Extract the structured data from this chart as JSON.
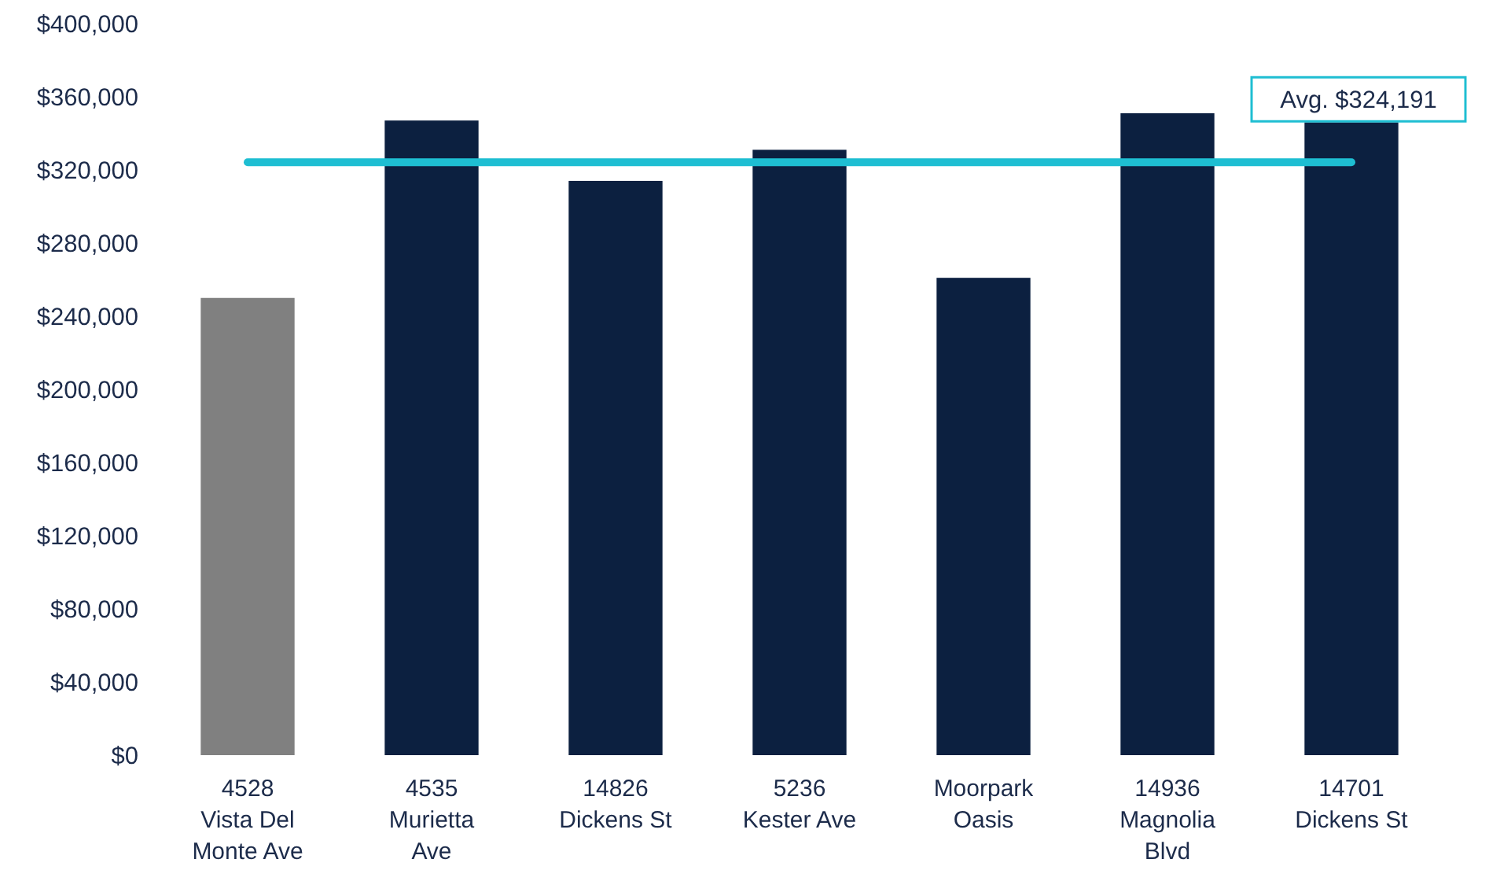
{
  "chart_data": {
    "type": "bar",
    "categories": [
      "4528 Vista Del Monte Ave",
      "4535 Murietta Ave",
      "14826 Dickens St",
      "5236 Kester Ave",
      "Moorpark Oasis",
      "14936 Magnolia Blvd",
      "14701 Dickens St"
    ],
    "values": [
      250000,
      347000,
      314000,
      331000,
      261000,
      351000,
      346000
    ],
    "colors": [
      "#808080",
      "#0c2040",
      "#0c2040",
      "#0c2040",
      "#0c2040",
      "#0c2040",
      "#0c2040"
    ],
    "ylim": [
      0,
      400000
    ],
    "yticks": [
      {
        "value": 0,
        "label": "$0"
      },
      {
        "value": 40000,
        "label": "$40,000"
      },
      {
        "value": 80000,
        "label": "$80,000"
      },
      {
        "value": 120000,
        "label": "$120,000"
      },
      {
        "value": 160000,
        "label": "$160,000"
      },
      {
        "value": 200000,
        "label": "$200,000"
      },
      {
        "value": 240000,
        "label": "$240,000"
      },
      {
        "value": 280000,
        "label": "$280,000"
      },
      {
        "value": 320000,
        "label": "$320,000"
      },
      {
        "value": 360000,
        "label": "$360,000"
      },
      {
        "value": 400000,
        "label": "$400,000"
      }
    ],
    "ref_lines": [
      {
        "axis": "y",
        "value": 324191,
        "label": "Avg. $324,191",
        "color": "#1ebed2"
      }
    ],
    "grid": false
  }
}
